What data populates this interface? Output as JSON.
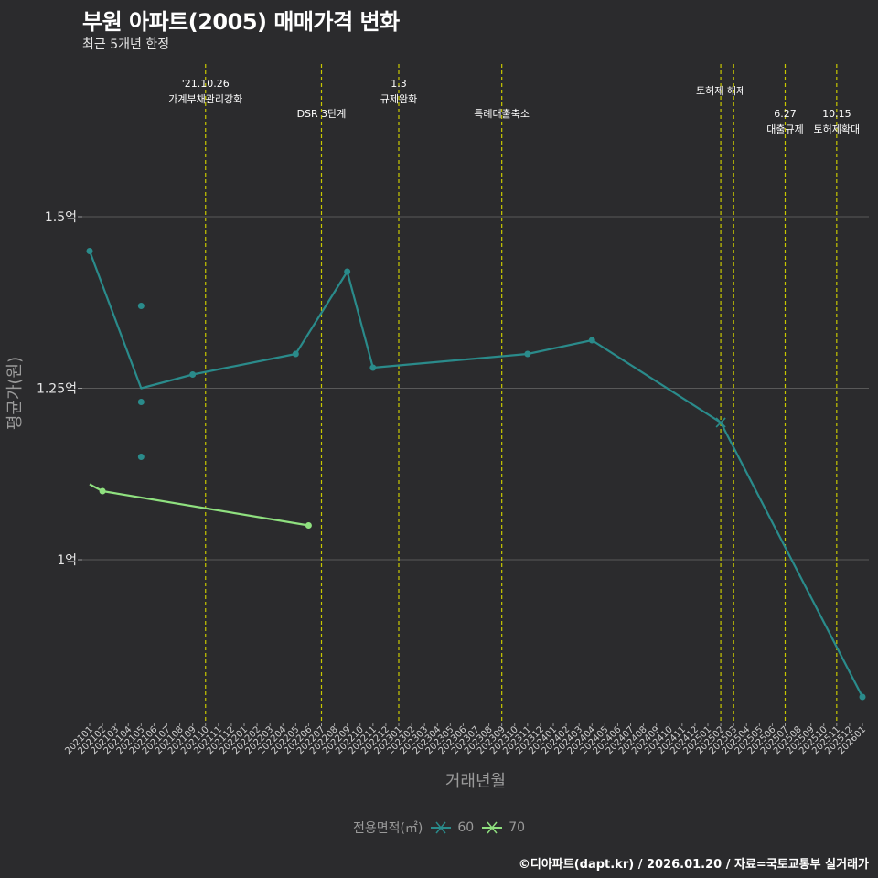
{
  "header": {
    "title": "부원 아파트(2005) 매매가격 변화",
    "subtitle": "최근 5개년 한정"
  },
  "caption": "©디아파트(dapt.kr) / 2026.01.20 / 자료=국토교통부 실거래가",
  "colors": {
    "background": "#2b2b2d",
    "grid": "#595959",
    "event_line": "#c8c800",
    "series_60": "#2a8b8b",
    "series_70": "#8fe07f"
  },
  "chart_data": {
    "type": "line",
    "title": "부원 아파트(2005) 매매가격 변화",
    "xlabel": "거래년월",
    "ylabel": "평균가(원)",
    "ylim": [
      0.8,
      1.65
    ],
    "y_ticks": [
      {
        "value": 1.0,
        "label": "1억"
      },
      {
        "value": 1.25,
        "label": "1.25억"
      },
      {
        "value": 1.5,
        "label": "1.5억"
      }
    ],
    "categories": [
      "202101",
      "202102",
      "202103",
      "202104",
      "202105",
      "202106",
      "202107",
      "202108",
      "202109",
      "202110",
      "202111",
      "202112",
      "202201",
      "202202",
      "202203",
      "202204",
      "202205",
      "202206",
      "202207",
      "202208",
      "202209",
      "202210",
      "202211",
      "202212",
      "202301",
      "202302",
      "202303",
      "202304",
      "202305",
      "202306",
      "202307",
      "202308",
      "202309",
      "202310",
      "202311",
      "202312",
      "202401",
      "202402",
      "202403",
      "202404",
      "202405",
      "202406",
      "202407",
      "202408",
      "202409",
      "202410",
      "202411",
      "202412",
      "202501",
      "202502",
      "202503",
      "202504",
      "202505",
      "202506",
      "202507",
      "202508",
      "202509",
      "202510",
      "202511",
      "202512",
      "202601"
    ],
    "legend_title": "전용면적(㎡)",
    "series": [
      {
        "name": "60",
        "line": [
          [
            "202101",
            1.45
          ],
          [
            "202105",
            1.25
          ],
          [
            "202109",
            1.27
          ],
          [
            "202205",
            1.3
          ],
          [
            "202209",
            1.42
          ],
          [
            "202211",
            1.28
          ],
          [
            "202311",
            1.3
          ],
          [
            "202404",
            1.32
          ],
          [
            "202502",
            1.2
          ],
          [
            "202601",
            0.8
          ]
        ],
        "points": [
          [
            "202101",
            1.45
          ],
          [
            "202105",
            1.37
          ],
          [
            "202105",
            1.23
          ],
          [
            "202105",
            1.15
          ],
          [
            "202109",
            1.27
          ],
          [
            "202205",
            1.3
          ],
          [
            "202209",
            1.42
          ],
          [
            "202211",
            1.28
          ],
          [
            "202311",
            1.3
          ],
          [
            "202404",
            1.32
          ],
          [
            "202601",
            0.8
          ]
        ],
        "cross_points": [
          [
            "202502",
            1.2
          ]
        ]
      },
      {
        "name": "70",
        "line": [
          [
            "202101",
            1.11
          ],
          [
            "202102",
            1.1
          ],
          [
            "202206",
            1.05
          ]
        ],
        "points": [
          [
            "202102",
            1.1
          ],
          [
            "202206",
            1.05
          ]
        ],
        "cross_points": []
      }
    ],
    "events": [
      {
        "month": "202110",
        "lines": [
          "'21.10.26",
          "가계부채관리강화"
        ],
        "row": 0
      },
      {
        "month": "202207",
        "lines": [
          "DSR 3단계"
        ],
        "row": 1
      },
      {
        "month": "202301",
        "lines": [
          "1.3",
          "규제완화"
        ],
        "row": 0
      },
      {
        "month": "202309",
        "lines": [
          "특례대출축소"
        ],
        "row": 1
      },
      {
        "month": "202502",
        "lines": [
          "토허제 해제"
        ],
        "row": 0
      },
      {
        "month": "202503",
        "lines": [],
        "row": 0
      },
      {
        "month": "202507",
        "lines": [
          "6.27",
          "대출규제"
        ],
        "row": 1
      },
      {
        "month": "202511",
        "lines": [
          "10.15",
          "토허제확대"
        ],
        "row": 1
      }
    ]
  }
}
